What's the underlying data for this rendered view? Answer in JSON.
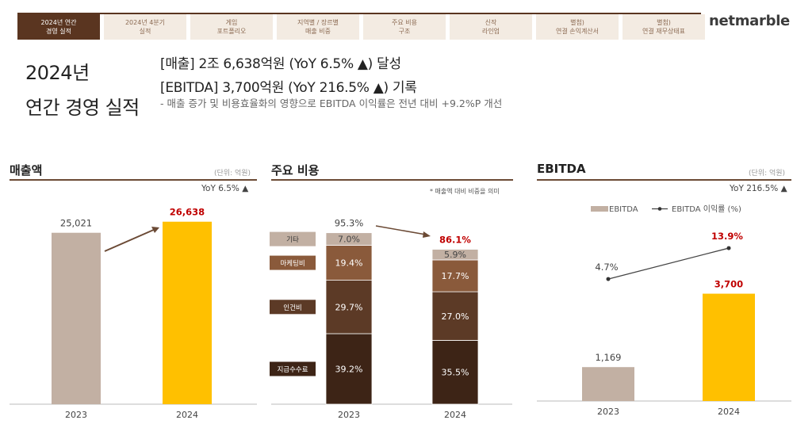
{
  "nav": {
    "tabs": [
      {
        "label": "2024년 연간\n경영 실적",
        "active": true
      },
      {
        "label": "2024년 4분기\n실적",
        "active": false
      },
      {
        "label": "게임\n포트폴리오",
        "active": false
      },
      {
        "label": "지역별 / 장르별\n매출 비중",
        "active": false
      },
      {
        "label": "주요 비용\n구조",
        "active": false
      },
      {
        "label": "신작\n라인업",
        "active": false
      },
      {
        "label": "별첨)\n연결 손익계산서",
        "active": false
      },
      {
        "label": "별첨)\n연결 재무상태표",
        "active": false
      }
    ],
    "logo": "netmarble"
  },
  "header": {
    "title": "2024년\n연간 경영 실적",
    "headline1": "[매출] 2조 6,638억원 (YoY 6.5% ▲) 달성",
    "headline2": "[EBITDA] 3,700억원 (YoY 216.5% ▲) 기록",
    "note": "- 매출 증가 및 비용효율화의 영향으로 EBITDA 이익률은 전년 대비 +9.2%P 개선"
  },
  "colors": {
    "brown": "#6b4a35",
    "gray": "#c2b0a3",
    "yellow": "#ffc000",
    "red": "#c00000"
  },
  "chart_data": [
    {
      "type": "bar",
      "title": "매출액",
      "unit": "(단위: 억원)",
      "yoy": "YoY 6.5% ▲",
      "categories": [
        "2023",
        "2024"
      ],
      "values": [
        25021,
        26638
      ],
      "value_labels": [
        "25,021",
        "26,638"
      ],
      "ylim": [
        0,
        29500
      ]
    },
    {
      "type": "bar",
      "stacked": true,
      "title": "주요 비용",
      "note": "* 매출액 대비 비중을 의미",
      "categories": [
        "2023",
        "2024"
      ],
      "series": [
        {
          "name": "지급수수료",
          "values": [
            39.2,
            35.5
          ],
          "labels": [
            "39.2%",
            "35.5%"
          ],
          "color": "#3d2416"
        },
        {
          "name": "인건비",
          "values": [
            29.7,
            27.0
          ],
          "labels": [
            "29.7%",
            "27.0%"
          ],
          "color": "#5c3a26"
        },
        {
          "name": "마케팅비",
          "values": [
            19.4,
            17.7
          ],
          "labels": [
            "19.4%",
            "17.7%"
          ],
          "color": "#8a5a3b"
        },
        {
          "name": "기타",
          "values": [
            7.0,
            5.9
          ],
          "labels": [
            "7.0%",
            "5.9%"
          ],
          "color": "#c2b0a3"
        }
      ],
      "totals": [
        95.3,
        86.1
      ],
      "total_labels": [
        "95.3%",
        "86.1%"
      ],
      "ylim": [
        0,
        110
      ]
    },
    {
      "type": "bar",
      "title": "EBITDA",
      "unit": "(단위: 억원)",
      "yoy": "YoY 216.5% ▲",
      "legend": [
        "EBITDA",
        "EBITDA 이익률 (%)"
      ],
      "categories": [
        "2023",
        "2024"
      ],
      "values": [
        1169,
        3700
      ],
      "value_labels": [
        "1,169",
        "3,700"
      ],
      "margin": [
        4.7,
        13.9
      ],
      "margin_labels": [
        "4.7%",
        "13.9%"
      ],
      "ylim": [
        0,
        5300
      ]
    }
  ]
}
